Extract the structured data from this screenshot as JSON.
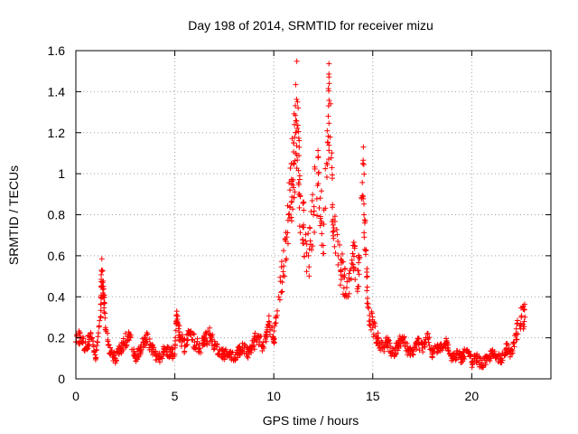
{
  "chart_data": {
    "type": "scatter",
    "title": "Day 198 of 2014, SRMTID for receiver mizu",
    "xlabel": "GPS time / hours",
    "ylabel": "SRMTID / TECUs",
    "xlim": [
      0,
      24
    ],
    "ylim": [
      0,
      1.6
    ],
    "xticks": [
      0,
      5,
      10,
      15,
      20
    ],
    "xtick_labels": [
      "0",
      "5",
      "10",
      "15",
      "20"
    ],
    "yticks": [
      0,
      0.2,
      0.4,
      0.6,
      0.8,
      1.0,
      1.2,
      1.4,
      1.6
    ],
    "ytick_labels": [
      "0",
      "0.2",
      "0.4",
      "0.6",
      "0.8",
      "1",
      "1.2",
      "1.4",
      "1.6"
    ],
    "grid": true,
    "marker": "+",
    "color": "#ff0000",
    "series": [
      {
        "name": "SRMTID",
        "x": [
          0.0,
          0.25,
          0.5,
          0.75,
          1.0,
          1.25,
          1.3,
          1.4,
          1.5,
          1.75,
          2.0,
          2.25,
          2.5,
          2.75,
          3.0,
          3.25,
          3.5,
          3.75,
          4.0,
          4.25,
          4.5,
          4.75,
          5.0,
          5.1,
          5.25,
          5.5,
          5.75,
          6.0,
          6.25,
          6.5,
          6.75,
          7.0,
          7.25,
          7.5,
          7.75,
          8.0,
          8.25,
          8.5,
          8.75,
          9.0,
          9.25,
          9.5,
          9.75,
          10.0,
          10.25,
          10.5,
          10.75,
          10.9,
          11.0,
          11.1,
          11.2,
          11.3,
          11.5,
          11.75,
          12.0,
          12.25,
          12.5,
          12.75,
          12.8,
          13.0,
          13.25,
          13.5,
          13.75,
          14.0,
          14.25,
          14.5,
          14.6,
          14.75,
          15.0,
          15.25,
          15.5,
          15.75,
          16.0,
          16.25,
          16.5,
          16.75,
          17.0,
          17.25,
          17.5,
          17.75,
          18.0,
          18.25,
          18.5,
          18.75,
          19.0,
          19.25,
          19.5,
          19.75,
          20.0,
          20.25,
          20.5,
          20.75,
          21.0,
          21.25,
          21.5,
          21.75,
          22.0,
          22.25,
          22.5
        ],
        "y": [
          0.18,
          0.2,
          0.15,
          0.22,
          0.1,
          0.3,
          0.53,
          0.41,
          0.25,
          0.12,
          0.1,
          0.15,
          0.18,
          0.2,
          0.1,
          0.14,
          0.2,
          0.17,
          0.12,
          0.1,
          0.15,
          0.13,
          0.12,
          0.33,
          0.2,
          0.16,
          0.22,
          0.18,
          0.15,
          0.19,
          0.22,
          0.16,
          0.14,
          0.12,
          0.13,
          0.1,
          0.14,
          0.15,
          0.12,
          0.18,
          0.2,
          0.15,
          0.28,
          0.19,
          0.4,
          0.55,
          0.8,
          0.95,
          1.05,
          1.2,
          1.35,
          0.9,
          0.75,
          0.6,
          0.8,
          1.0,
          0.65,
          1.28,
          1.44,
          0.75,
          0.6,
          0.5,
          0.4,
          0.65,
          0.45,
          1.05,
          0.76,
          0.35,
          0.25,
          0.2,
          0.15,
          0.18,
          0.12,
          0.16,
          0.2,
          0.14,
          0.12,
          0.18,
          0.15,
          0.22,
          0.12,
          0.15,
          0.14,
          0.18,
          0.1,
          0.12,
          0.1,
          0.14,
          0.08,
          0.1,
          0.07,
          0.09,
          0.12,
          0.11,
          0.1,
          0.15,
          0.12,
          0.22,
          0.3
        ]
      }
    ]
  }
}
